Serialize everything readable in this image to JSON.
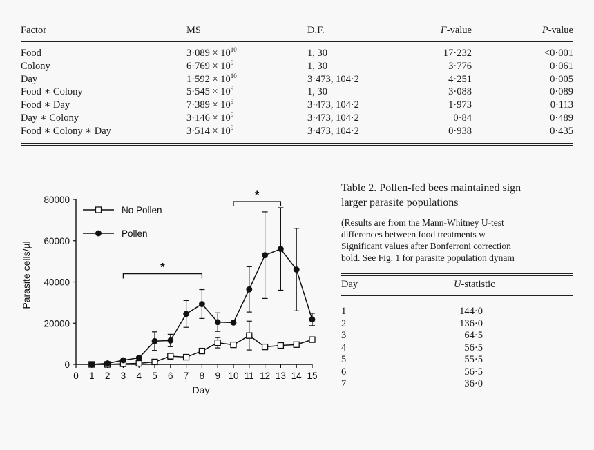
{
  "anova": {
    "headers": {
      "factor": "Factor",
      "ms": "MS",
      "df": "D.F.",
      "f_letter": "F",
      "f_rest": "-value",
      "p_letter": "P",
      "p_rest": "-value"
    },
    "rows": [
      {
        "factor": "Food",
        "ms_base": "3·089 × 10",
        "ms_exp": "10",
        "df": "1, 30",
        "f": "17·232",
        "p": "<0·001"
      },
      {
        "factor": "Colony",
        "ms_base": "6·769 × 10",
        "ms_exp": "9",
        "df": "1, 30",
        "f": "3·776",
        "p": "0·061"
      },
      {
        "factor": "Day",
        "ms_base": "1·592 × 10",
        "ms_exp": "10",
        "df": "3·473, 104·2",
        "f": "4·251",
        "p": "0·005"
      },
      {
        "factor": "Food ∗ Colony",
        "ms_base": "5·545 × 10",
        "ms_exp": "9",
        "df": "1, 30",
        "f": "3·088",
        "p": "0·089"
      },
      {
        "factor": "Food ∗ Day",
        "ms_base": "7·389 × 10",
        "ms_exp": "9",
        "df": "3·473, 104·2",
        "f": "1·973",
        "p": "0·113"
      },
      {
        "factor": "Day ∗ Colony",
        "ms_base": "3·146 × 10",
        "ms_exp": "9",
        "df": "3·473, 104·2",
        "f": "0·84",
        "p": "0·489"
      },
      {
        "factor": "Food ∗ Colony ∗ Day",
        "ms_base": "3·514 × 10",
        "ms_exp": "9",
        "df": "3·473, 104·2",
        "f": "0·938",
        "p": "0·435"
      }
    ]
  },
  "chart_data": {
    "type": "line",
    "xlabel": "Day",
    "ylabel": "Parasite cells/µl",
    "xlim": [
      0,
      15
    ],
    "ylim": [
      0,
      80000
    ],
    "x_ticks": [
      "0",
      "1",
      "2",
      "3",
      "4",
      "5",
      "6",
      "7",
      "8",
      "9",
      "10",
      "11",
      "12",
      "13",
      "14",
      "15"
    ],
    "y_ticks": [
      "0",
      "20000",
      "40000",
      "60000",
      "80000"
    ],
    "legend_position": "top-left",
    "series": [
      {
        "name": "No Pollen",
        "marker": "open-square",
        "x": [
          1,
          2,
          3,
          4,
          5,
          6,
          7,
          8,
          9,
          10,
          11,
          12,
          13,
          14,
          15
        ],
        "values": [
          0,
          0,
          300,
          500,
          1200,
          4000,
          3500,
          6500,
          10500,
          9500,
          14000,
          8500,
          9200,
          9600,
          12000
        ],
        "errors": [
          0,
          0,
          0,
          0,
          0,
          1500,
          0,
          1000,
          2500,
          0,
          7000,
          0,
          0,
          0,
          0
        ]
      },
      {
        "name": "Pollen",
        "marker": "filled-circle",
        "x": [
          1,
          2,
          3,
          4,
          5,
          6,
          7,
          8,
          9,
          10,
          11,
          12,
          13,
          14,
          15
        ],
        "values": [
          0,
          500,
          2000,
          3200,
          11300,
          11600,
          24500,
          29300,
          20500,
          20300,
          36400,
          53000,
          56000,
          46000,
          21800
        ],
        "errors": [
          0,
          0,
          0,
          0,
          4500,
          3000,
          6500,
          7000,
          4500,
          0,
          11000,
          21000,
          20000,
          20000,
          3000
        ]
      }
    ],
    "annotations": [
      {
        "text": "*",
        "x_start": 3,
        "x_end": 8,
        "y": 44000
      },
      {
        "text": "*",
        "x_start": 10,
        "x_end": 13,
        "y": 79000
      }
    ]
  },
  "table2": {
    "title_lines": [
      "Table 2.  Pollen-fed bees maintained sign",
      "larger parasite populations"
    ],
    "note_lines": [
      "(Results are from the Mann-Whitney U-test",
      "differences  between  food  treatments  w",
      "Significant values after Bonferroni correction",
      "bold. See Fig. 1 for parasite population dynam"
    ],
    "headers": {
      "day": "Day",
      "u_letter": "U",
      "u_rest": "-statistic"
    },
    "rows": [
      {
        "day": "1",
        "u": "144·0"
      },
      {
        "day": "2",
        "u": "136·0"
      },
      {
        "day": "3",
        "u": "64·5"
      },
      {
        "day": "4",
        "u": "56·5"
      },
      {
        "day": "5",
        "u": "55·5"
      },
      {
        "day": "6",
        "u": "56·5"
      },
      {
        "day": "7",
        "u": "36·0"
      }
    ]
  }
}
